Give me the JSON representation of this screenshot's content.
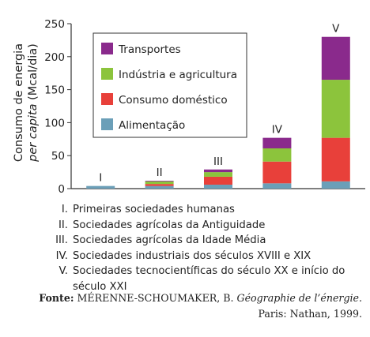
{
  "chart_data": {
    "type": "bar",
    "stacked": true,
    "ylabel_line1": "Consumo de energia",
    "ylabel_line2_italic": "per capita",
    "ylabel_line2_rest": " (Mcal/dia)",
    "ylim": [
      0,
      250
    ],
    "yticks": [
      0,
      50,
      100,
      150,
      200,
      250
    ],
    "categories": [
      "I",
      "II",
      "III",
      "IV",
      "V"
    ],
    "series": [
      {
        "name": "Alimentação",
        "color": "#6b9fb8",
        "values": [
          4,
          4,
          6,
          8,
          11
        ]
      },
      {
        "name": "Consumo doméstico",
        "color": "#e8403a",
        "values": [
          0,
          3,
          12,
          33,
          66
        ]
      },
      {
        "name": "Indústria e agricultura",
        "color": "#8cc43c",
        "values": [
          0,
          4,
          7,
          20,
          88
        ]
      },
      {
        "name": "Transportes",
        "color": "#8a2a8c",
        "values": [
          0,
          1,
          4,
          16,
          65
        ]
      }
    ],
    "legend_order": [
      "Transportes",
      "Indústria e agricultura",
      "Consumo doméstico",
      "Alimentação"
    ],
    "legend_position": "top-left",
    "grid": false
  },
  "notes": [
    {
      "num": "I.",
      "text": "Primeiras sociedades humanas"
    },
    {
      "num": "II.",
      "text": "Sociedades agrícolas da Antiguidade"
    },
    {
      "num": "III.",
      "text": "Sociedades agrícolas da Idade Média"
    },
    {
      "num": "IV.",
      "text": "Sociedades industriais dos séculos XVIII e XIX"
    },
    {
      "num": "V.",
      "text": "Sociedades tecnocientíficas do século XX e início do século XXI"
    }
  ],
  "source": {
    "label": "Fonte:",
    "author": " MÉRENNE-SCHOUMAKER, B. ",
    "title": "Géographie de l’énergie.",
    "publisher": "Paris: Nathan, 1999."
  }
}
